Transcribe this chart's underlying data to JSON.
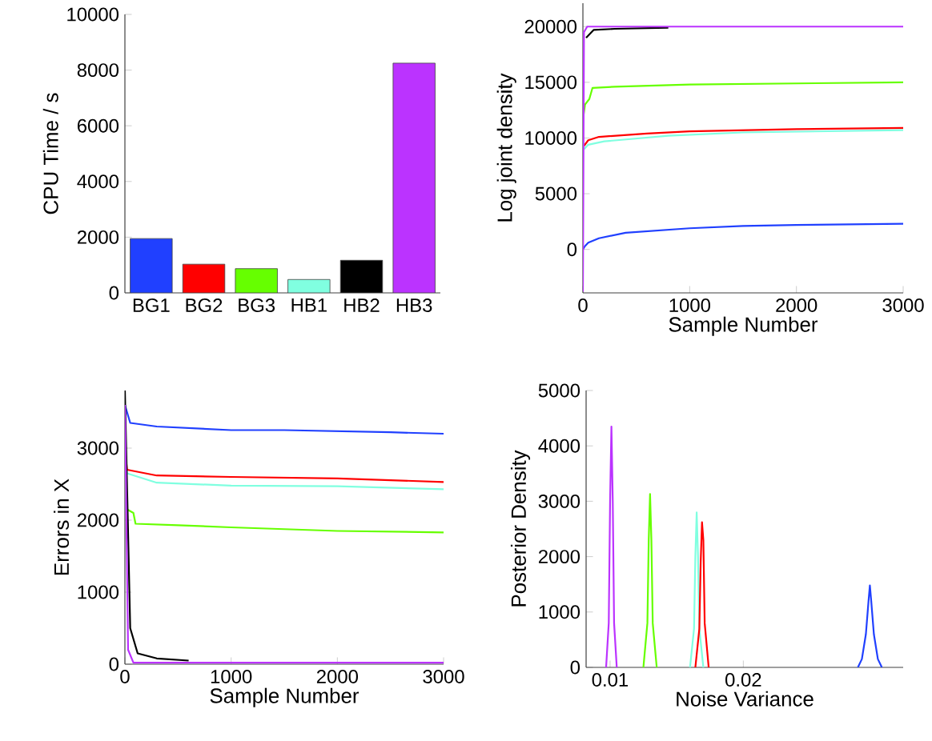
{
  "chart_data": [
    {
      "type": "bar",
      "ylabel": "CPU Time / s",
      "categories": [
        "BG1",
        "BG2",
        "BG3",
        "HB1",
        "HB2",
        "HB3"
      ],
      "values": [
        1950,
        1030,
        870,
        480,
        1170,
        8250
      ],
      "colors": [
        "#2040ff",
        "#ff0000",
        "#66ff00",
        "#80ffe0",
        "#000000",
        "#bb33ff"
      ],
      "ylim": [
        0,
        10000
      ],
      "yticks": [
        0,
        2000,
        4000,
        6000,
        8000,
        10000
      ]
    },
    {
      "type": "line",
      "xlabel": "Sample Number",
      "ylabel": "Log joint density",
      "xlim": [
        0,
        3000
      ],
      "xticks": [
        0,
        1000,
        2000,
        3000
      ],
      "ylim": [
        -3900,
        22100
      ],
      "yticks": [
        0,
        5000,
        10000,
        15000,
        20000
      ],
      "series": [
        {
          "color": "#2040ff",
          "x": [
            0,
            20,
            50,
            150,
            400,
            1000,
            1500,
            2000,
            3000
          ],
          "values": [
            0,
            300,
            600,
            1000,
            1500,
            1900,
            2100,
            2200,
            2300
          ]
        },
        {
          "color": "#80ffe0",
          "x": [
            10,
            50,
            200,
            800,
            1500,
            3000
          ],
          "values": [
            9000,
            9400,
            9700,
            10200,
            10500,
            10700
          ]
        },
        {
          "color": "#ff0000",
          "x": [
            10,
            50,
            150,
            600,
            1000,
            2000,
            3000
          ],
          "values": [
            9300,
            9800,
            10100,
            10400,
            10600,
            10800,
            10900
          ]
        },
        {
          "color": "#66ff00",
          "x": [
            5,
            20,
            60,
            90,
            300,
            1000,
            3000
          ],
          "values": [
            12000,
            13000,
            13500,
            14500,
            14600,
            14800,
            15000
          ]
        },
        {
          "color": "#000000",
          "x": [
            30,
            100,
            300,
            800
          ],
          "values": [
            19000,
            19700,
            19800,
            19900
          ]
        },
        {
          "color": "#bb33ff",
          "x": [
            0,
            10,
            40,
            3000
          ],
          "values": [
            -3800,
            19500,
            20000,
            20000
          ]
        }
      ]
    },
    {
      "type": "line",
      "xlabel": "Sample Number",
      "ylabel": "Errors in X",
      "xlim": [
        0,
        3000
      ],
      "xticks": [
        0,
        1000,
        2000,
        3000
      ],
      "ylim": [
        0,
        3800
      ],
      "yticks": [
        0,
        1000,
        2000,
        3000
      ],
      "series": [
        {
          "color": "#2040ff",
          "x": [
            0,
            50,
            300,
            1000,
            1500,
            2500,
            3000
          ],
          "values": [
            3600,
            3350,
            3300,
            3250,
            3250,
            3220,
            3200
          ]
        },
        {
          "color": "#80ffe0",
          "x": [
            0,
            20,
            300,
            1000,
            2000,
            3000
          ],
          "values": [
            3000,
            2650,
            2520,
            2480,
            2470,
            2430
          ]
        },
        {
          "color": "#ff0000",
          "x": [
            0,
            20,
            300,
            1000,
            2000,
            3000
          ],
          "values": [
            3000,
            2700,
            2620,
            2600,
            2580,
            2530
          ]
        },
        {
          "color": "#66ff00",
          "x": [
            0,
            20,
            80,
            100,
            500,
            1000,
            2000,
            3000
          ],
          "values": [
            2600,
            2150,
            2100,
            1950,
            1930,
            1900,
            1850,
            1830
          ]
        },
        {
          "color": "#000000",
          "x": [
            0,
            50,
            120,
            300,
            600
          ],
          "values": [
            3800,
            500,
            150,
            80,
            50
          ]
        },
        {
          "color": "#bb33ff",
          "x": [
            0,
            30,
            80,
            3000
          ],
          "values": [
            3600,
            200,
            20,
            20
          ]
        }
      ]
    },
    {
      "type": "line",
      "xlabel": "Noise Variance",
      "ylabel": "Posterior Density",
      "xlim": [
        0.0082,
        0.032
      ],
      "xticks": [
        0.01,
        0.02
      ],
      "ylim": [
        0,
        5000
      ],
      "yticks": [
        0,
        1000,
        2000,
        3000,
        4000,
        5000
      ],
      "series": [
        {
          "color": "#bb33ff",
          "x": [
            0.0097,
            0.0099,
            0.01,
            0.0101,
            0.0102,
            0.0103,
            0.0105
          ],
          "values": [
            0,
            800,
            3000,
            4350,
            3000,
            800,
            0
          ]
        },
        {
          "color": "#66ff00",
          "x": [
            0.0125,
            0.0128,
            0.0129,
            0.013,
            0.0131,
            0.0132,
            0.0135
          ],
          "values": [
            0,
            800,
            2300,
            3130,
            2300,
            800,
            0
          ]
        },
        {
          "color": "#80ffe0",
          "x": [
            0.016,
            0.0163,
            0.0164,
            0.0165,
            0.0166,
            0.0167,
            0.017
          ],
          "values": [
            0,
            700,
            2000,
            2800,
            2000,
            700,
            0
          ]
        },
        {
          "color": "#ff0000",
          "x": [
            0.0164,
            0.0167,
            0.0168,
            0.0169,
            0.017,
            0.0171,
            0.0174
          ],
          "values": [
            0,
            700,
            1900,
            2620,
            2300,
            800,
            0
          ]
        },
        {
          "color": "#2040ff",
          "x": [
            0.0286,
            0.0289,
            0.0292,
            0.0294,
            0.0295,
            0.0296,
            0.0298,
            0.0301,
            0.0304
          ],
          "values": [
            0,
            150,
            600,
            1200,
            1480,
            1200,
            600,
            150,
            0
          ]
        }
      ]
    }
  ]
}
